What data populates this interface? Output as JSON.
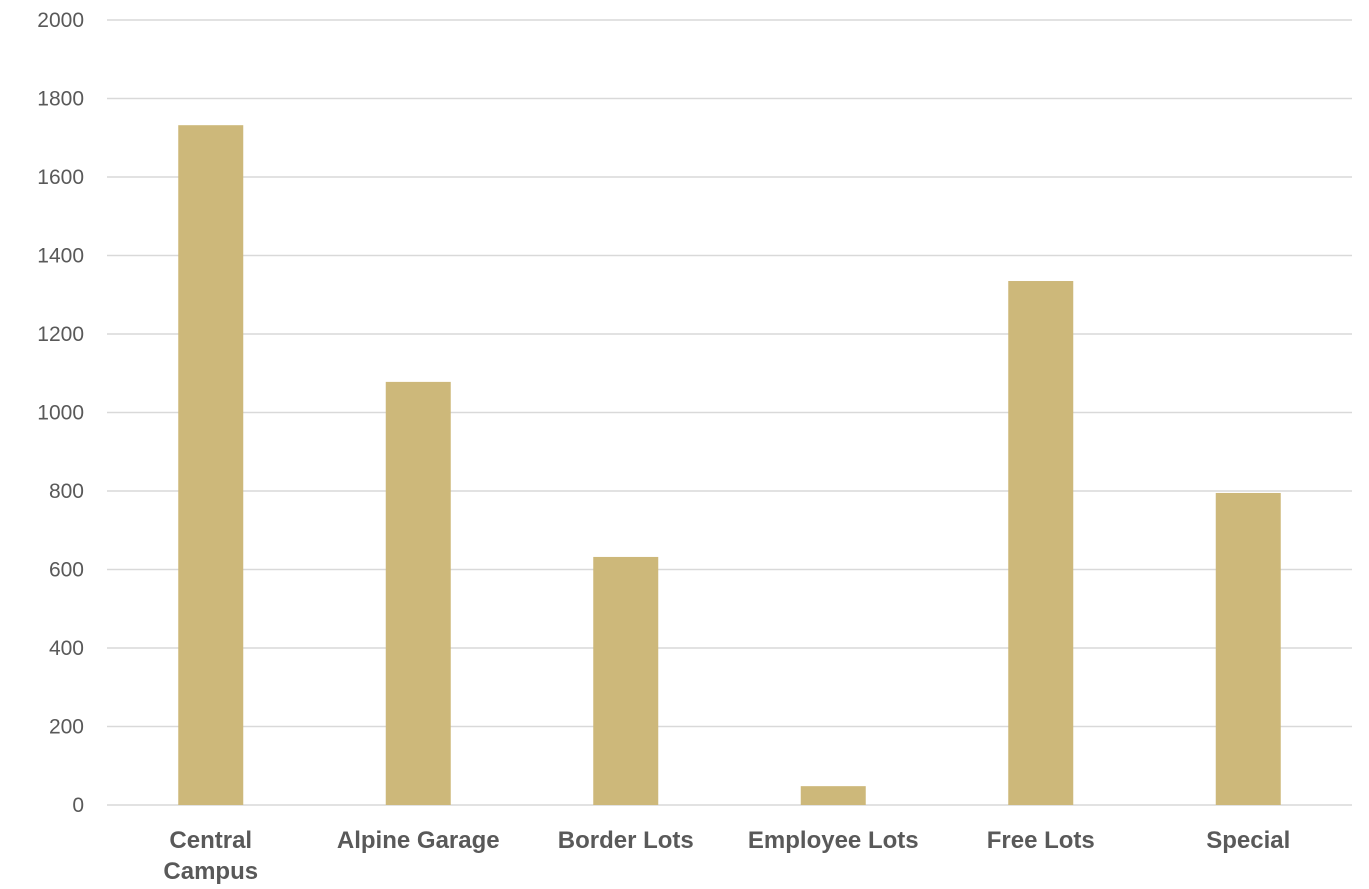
{
  "chart_data": {
    "type": "bar",
    "title": "",
    "xlabel": "",
    "ylabel": "",
    "categories": [
      "Central Campus",
      "Alpine Garage",
      "Border Lots",
      "Employee Lots",
      "Free Lots",
      "Special"
    ],
    "category_lines": [
      [
        "Central",
        "Campus"
      ],
      [
        "Alpine Garage"
      ],
      [
        "Border Lots"
      ],
      [
        "Employee Lots"
      ],
      [
        "Free Lots"
      ],
      [
        "Special"
      ]
    ],
    "values": [
      1732,
      1078,
      632,
      48,
      1335,
      795
    ],
    "ylim": [
      0,
      2000
    ],
    "yticks": [
      0,
      200,
      400,
      600,
      800,
      1000,
      1200,
      1400,
      1600,
      1800,
      2000
    ],
    "grid": true,
    "legend": "none",
    "bar_color": "#cdb87a",
    "grid_color": "#d9d9d9",
    "label_color": "#595959"
  }
}
